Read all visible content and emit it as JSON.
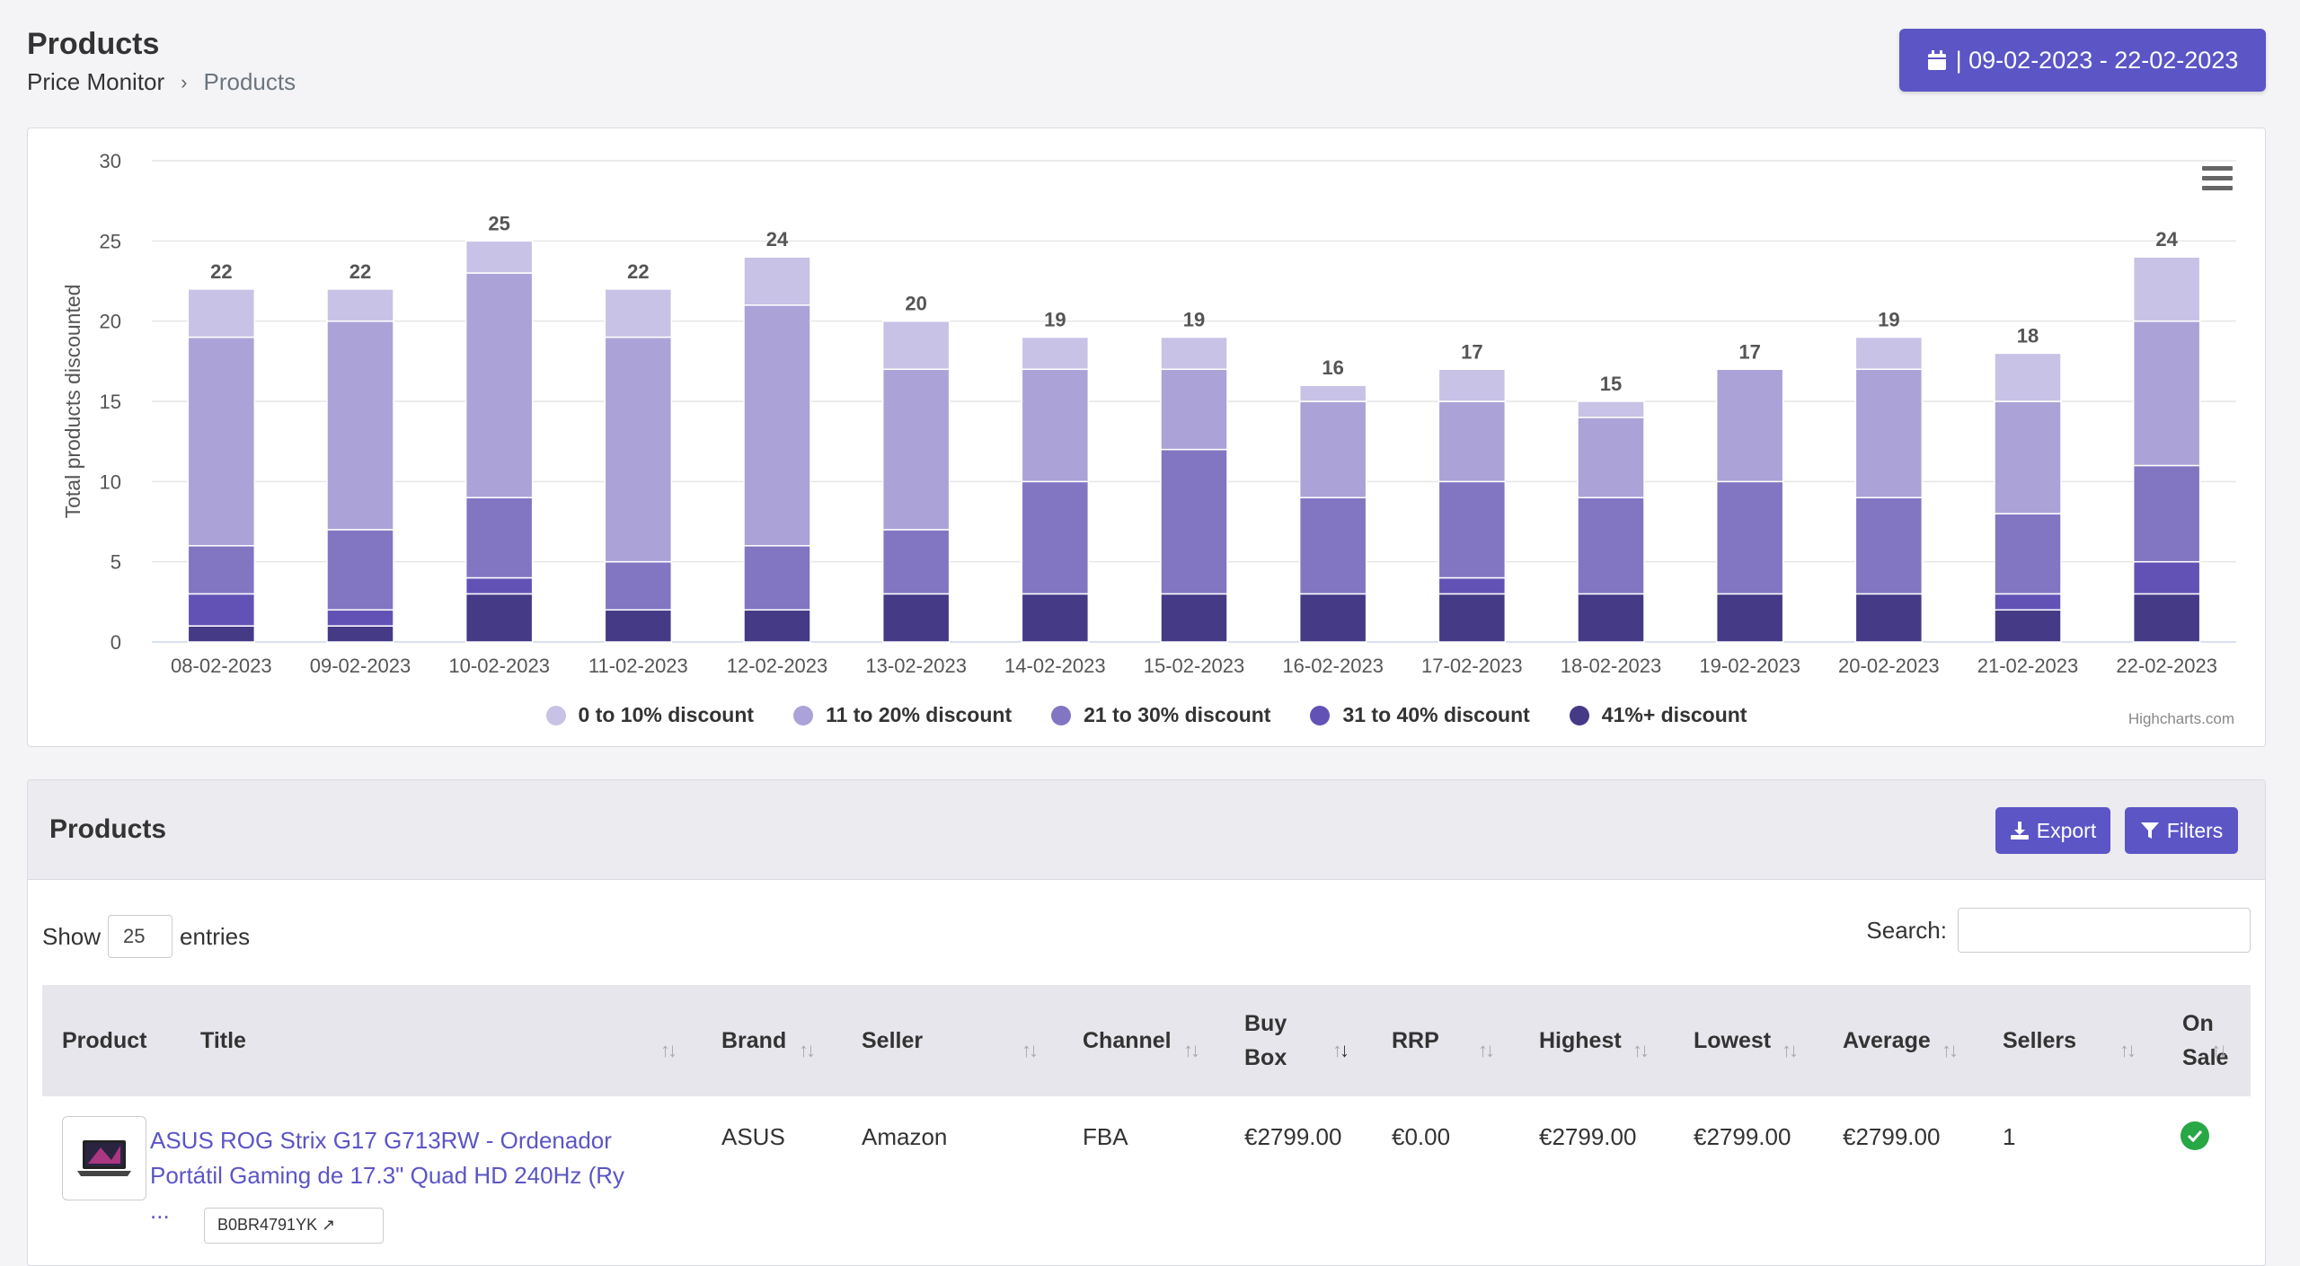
{
  "page": {
    "title": "Products",
    "breadcrumb": [
      "Price Monitor",
      "Products"
    ],
    "date_range": "| 09-02-2023 - 22-02-2023"
  },
  "chart_data": {
    "type": "bar",
    "stacked": true,
    "ylabel": "Total products discounted",
    "ylim": [
      0,
      30
    ],
    "yticks": [
      0,
      5,
      10,
      15,
      20,
      25,
      30
    ],
    "grid": true,
    "legend_position": "bottom-center",
    "credits": "Highcharts.com",
    "categories": [
      "08-02-2023",
      "09-02-2023",
      "10-02-2023",
      "11-02-2023",
      "12-02-2023",
      "13-02-2023",
      "14-02-2023",
      "15-02-2023",
      "16-02-2023",
      "17-02-2023",
      "18-02-2023",
      "19-02-2023",
      "20-02-2023",
      "21-02-2023",
      "22-02-2023"
    ],
    "totals": [
      22,
      22,
      25,
      22,
      24,
      20,
      19,
      19,
      16,
      17,
      15,
      17,
      19,
      18,
      24
    ],
    "series": [
      {
        "name": "0 to 10% discount",
        "color": "#c8c2e6",
        "values": [
          3,
          2,
          2,
          3,
          3,
          3,
          2,
          2,
          1,
          2,
          1,
          0,
          2,
          3,
          4
        ]
      },
      {
        "name": "11 to 20% discount",
        "color": "#aba2d8",
        "values": [
          13,
          13,
          14,
          14,
          15,
          10,
          7,
          5,
          6,
          5,
          5,
          7,
          8,
          7,
          9
        ]
      },
      {
        "name": "21 to 30% discount",
        "color": "#8275c2",
        "values": [
          3,
          5,
          5,
          3,
          4,
          4,
          7,
          9,
          6,
          6,
          6,
          7,
          6,
          5,
          6
        ]
      },
      {
        "name": "31 to 40% discount",
        "color": "#6352b5",
        "values": [
          2,
          1,
          1,
          0,
          0,
          0,
          0,
          0,
          0,
          1,
          0,
          0,
          0,
          1,
          2
        ]
      },
      {
        "name": "41%+ discount",
        "color": "#453a86",
        "values": [
          1,
          1,
          3,
          2,
          2,
          3,
          3,
          3,
          3,
          3,
          3,
          3,
          3,
          2,
          3
        ]
      }
    ]
  },
  "table": {
    "title": "Products",
    "export_label": "Export",
    "filters_label": "Filters",
    "show_label": "Show",
    "entries_value": "25",
    "entries_label": "entries",
    "search_label": "Search:",
    "columns": [
      "Product",
      "Title",
      "Brand",
      "Seller",
      "Channel",
      "Buy Box",
      "RRP",
      "Highest",
      "Lowest",
      "Average",
      "Sellers",
      "On Sale"
    ],
    "rows": [
      {
        "title": "ASUS ROG Strix G17 G713RW - Ordenador Portátil Gaming de 17.3\" Quad HD 240Hz (Ry ...",
        "asin": "B0BR4791YK",
        "brand": "ASUS",
        "seller": "Amazon",
        "channel": "FBA",
        "buy_box": "€2799.00",
        "rrp": "€0.00",
        "highest": "€2799.00",
        "lowest": "€2799.00",
        "average": "€2799.00",
        "sellers": "1",
        "on_sale": true
      }
    ]
  }
}
